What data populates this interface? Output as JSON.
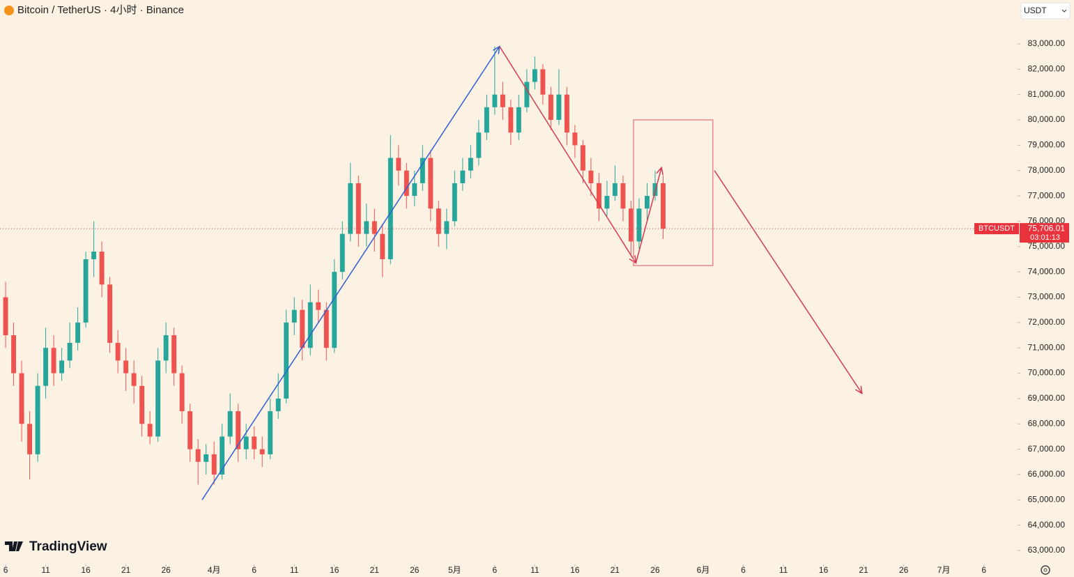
{
  "header": {
    "title": "Bitcoin / TetherUS · 4小时 · Binance",
    "currency": "USDT",
    "brand": "TradingView"
  },
  "chart_data": {
    "type": "candlestick",
    "x": [
      0,
      1,
      2,
      3,
      4,
      5,
      6,
      7,
      8,
      9,
      10,
      11,
      12,
      13,
      14,
      15,
      16,
      17,
      18,
      19,
      20,
      21,
      22,
      23,
      24,
      25,
      26,
      27,
      28,
      29,
      30,
      31,
      32,
      33,
      34,
      35,
      36,
      37,
      38,
      39,
      40,
      41,
      42,
      43,
      44,
      45,
      46,
      47,
      48,
      49,
      50,
      51,
      52,
      53,
      54,
      55,
      56,
      57,
      58,
      59,
      60,
      61,
      62,
      63,
      64,
      65,
      66,
      67,
      68,
      69,
      70,
      71,
      72,
      73,
      74,
      75,
      76,
      77,
      78,
      79,
      80,
      81,
      82
    ],
    "open": [
      73000,
      71500,
      70000,
      68000,
      66800,
      69500,
      71000,
      70000,
      70500,
      71200,
      72000,
      74500,
      74800,
      73500,
      71200,
      70500,
      70000,
      69500,
      68000,
      67500,
      70500,
      71500,
      70000,
      68500,
      67000,
      66500,
      66800,
      66000,
      67500,
      68500,
      67000,
      67500,
      67000,
      66800,
      68500,
      69000,
      72000,
      72500,
      71000,
      72800,
      72500,
      71000,
      74000,
      75500,
      77500,
      75500,
      76000,
      75500,
      74500,
      78500,
      78000,
      77000,
      77500,
      78500,
      76500,
      75500,
      76000,
      77500,
      78000,
      78500,
      79500,
      80500,
      81000,
      80500,
      79500,
      80500,
      81500,
      82000,
      81000,
      80000,
      81000,
      79500,
      79000,
      78000,
      77500,
      76500,
      77000,
      77500,
      76500,
      75200,
      76500,
      77000,
      77500
    ],
    "high": [
      73600,
      72000,
      70500,
      68500,
      70000,
      71800,
      71500,
      71000,
      72000,
      72600,
      74800,
      76000,
      75200,
      73800,
      71700,
      71000,
      70500,
      69900,
      68500,
      71000,
      72000,
      71800,
      70300,
      68800,
      67400,
      67200,
      67300,
      68000,
      69200,
      68800,
      68000,
      67900,
      67500,
      69000,
      70000,
      72500,
      73000,
      72900,
      73500,
      73300,
      72800,
      74500,
      76000,
      78300,
      77800,
      76700,
      76500,
      75900,
      79400,
      79000,
      78300,
      78000,
      79000,
      78800,
      76800,
      76500,
      78000,
      78500,
      79000,
      80000,
      81000,
      82900,
      81500,
      80800,
      81000,
      82000,
      82500,
      82200,
      81300,
      82000,
      81300,
      79800,
      79200,
      78500,
      77900,
      77600,
      78200,
      77800,
      76800,
      76900,
      77500,
      78000,
      77800
    ],
    "low": [
      71000,
      69500,
      67300,
      65800,
      66500,
      69000,
      69500,
      69700,
      70200,
      70900,
      71800,
      73800,
      73000,
      70800,
      70000,
      69300,
      68800,
      67500,
      67200,
      67300,
      70000,
      69500,
      68000,
      66500,
      65600,
      66000,
      65600,
      65800,
      67200,
      66500,
      66600,
      66600,
      66300,
      66600,
      68200,
      68800,
      71500,
      70500,
      70700,
      72000,
      70500,
      70800,
      73700,
      75200,
      75000,
      75000,
      74800,
      73800,
      74300,
      77400,
      76500,
      76600,
      77200,
      76000,
      75000,
      74900,
      75800,
      77200,
      77700,
      78200,
      79200,
      80200,
      80000,
      79000,
      79200,
      80300,
      81200,
      80600,
      79600,
      79800,
      79000,
      78500,
      77500,
      77000,
      76000,
      76200,
      76800,
      76000,
      74700,
      74900,
      76000,
      76800,
      75300
    ],
    "close": [
      71500,
      70000,
      68000,
      66800,
      69500,
      71000,
      70000,
      70500,
      71200,
      72000,
      74500,
      74800,
      73500,
      71200,
      70500,
      70000,
      69500,
      68000,
      67500,
      70500,
      71500,
      70000,
      68500,
      67000,
      66500,
      66800,
      66000,
      67500,
      68500,
      67000,
      67500,
      67000,
      66800,
      68500,
      69000,
      72000,
      72500,
      71000,
      72800,
      72500,
      71000,
      74000,
      75500,
      77500,
      75500,
      76000,
      75500,
      74500,
      78500,
      78000,
      77000,
      77500,
      78500,
      76500,
      75500,
      76000,
      77500,
      78000,
      78500,
      79500,
      80500,
      81000,
      80500,
      79500,
      80500,
      81500,
      82000,
      81000,
      80000,
      81000,
      79500,
      79000,
      78000,
      77500,
      76500,
      77000,
      77500,
      76500,
      75200,
      76500,
      77000,
      77500,
      75706
    ],
    "up_color": "#26a69a",
    "down_color": "#ef5350",
    "xlim": [
      -0.7,
      126.2
    ],
    "xticks": [
      {
        "value": 0,
        "label": "6"
      },
      {
        "value": 5,
        "label": "11"
      },
      {
        "value": 10,
        "label": "16"
      },
      {
        "value": 15,
        "label": "21"
      },
      {
        "value": 20,
        "label": "26"
      },
      {
        "value": 26,
        "label": "4月"
      },
      {
        "value": 31,
        "label": "6"
      },
      {
        "value": 36,
        "label": "11"
      },
      {
        "value": 41,
        "label": "16"
      },
      {
        "value": 46,
        "label": "21"
      },
      {
        "value": 51,
        "label": "26"
      },
      {
        "value": 56,
        "label": "5月"
      },
      {
        "value": 61,
        "label": "6"
      },
      {
        "value": 66,
        "label": "11"
      },
      {
        "value": 71,
        "label": "16"
      },
      {
        "value": 76,
        "label": "21"
      },
      {
        "value": 81,
        "label": "26"
      },
      {
        "value": 87,
        "label": "6月"
      },
      {
        "value": 92,
        "label": "6"
      },
      {
        "value": 97,
        "label": "11"
      },
      {
        "value": 102,
        "label": "16"
      },
      {
        "value": 107,
        "label": "21"
      },
      {
        "value": 112,
        "label": "26"
      },
      {
        "value": 117,
        "label": "7月"
      },
      {
        "value": 122,
        "label": "6"
      }
    ],
    "ylim": [
      62450,
      84733
    ],
    "yticks": [
      {
        "value": 63000,
        "label": "63,000.00"
      },
      {
        "value": 64000,
        "label": "64,000.00"
      },
      {
        "value": 65000,
        "label": "65,000.00"
      },
      {
        "value": 66000,
        "label": "66,000.00"
      },
      {
        "value": 67000,
        "label": "67,000.00"
      },
      {
        "value": 68000,
        "label": "68,000.00"
      },
      {
        "value": 69000,
        "label": "69,000.00"
      },
      {
        "value": 70000,
        "label": "70,000.00"
      },
      {
        "value": 71000,
        "label": "71,000.00"
      },
      {
        "value": 72000,
        "label": "72,000.00"
      },
      {
        "value": 73000,
        "label": "73,000.00"
      },
      {
        "value": 74000,
        "label": "74,000.00"
      },
      {
        "value": 75000,
        "label": "75,000.00"
      },
      {
        "value": 76000,
        "label": "76,000.00"
      },
      {
        "value": 77000,
        "label": "77,000.00"
      },
      {
        "value": 78000,
        "label": "78,000.00"
      },
      {
        "value": 79000,
        "label": "79,000.00"
      },
      {
        "value": 80000,
        "label": "80,000.00"
      },
      {
        "value": 81000,
        "label": "81,000.00"
      },
      {
        "value": 82000,
        "label": "82,000.00"
      },
      {
        "value": 83000,
        "label": "83,000.00"
      }
    ],
    "last_price": {
      "symbol": "BTCUSDT",
      "value": 75706.01,
      "label": "75,706.01",
      "countdown": "03:01:13",
      "color": "#e8323c"
    },
    "drawings": [
      {
        "type": "arrow",
        "color": "#2f5fd0",
        "x": [
          24.5,
          61.6
        ],
        "y": [
          65000,
          82900
        ]
      },
      {
        "type": "arrow",
        "color": "#d33a4f",
        "x": [
          61.6,
          78.6
        ],
        "y": [
          82900,
          74350
        ]
      },
      {
        "type": "arrow",
        "color": "#d33a4f",
        "x": [
          78.6,
          81.8
        ],
        "y": [
          74350,
          78120
        ]
      },
      {
        "type": "rect",
        "color": "#e8868e",
        "x": [
          78.3,
          88.2
        ],
        "y": [
          80000,
          74250
        ]
      },
      {
        "type": "arrow",
        "color": "#d33a4f",
        "x": [
          88.4,
          106.8
        ],
        "y": [
          78000,
          69200
        ]
      }
    ]
  }
}
